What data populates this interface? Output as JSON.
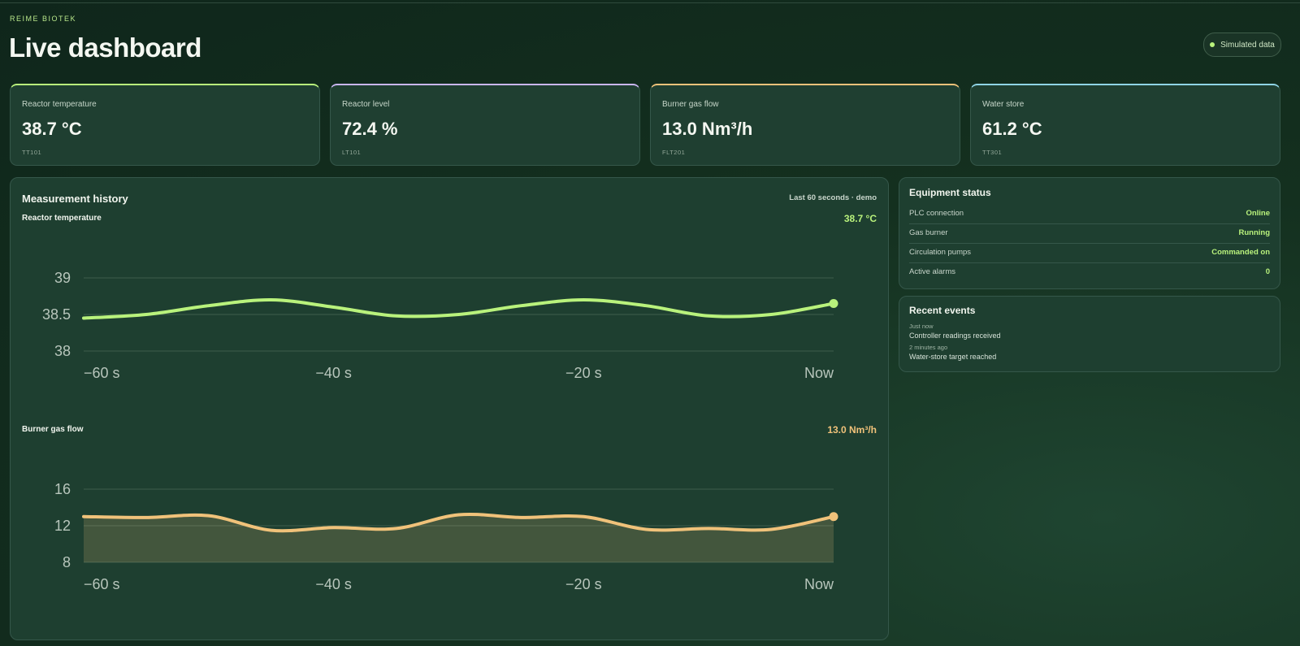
{
  "brand": "REIME BIOTEK",
  "page_title": "Live dashboard",
  "badge": {
    "label": "Simulated data",
    "dot_color": "#b9f27c"
  },
  "kpis": [
    {
      "label": "Reactor temperature",
      "value": "38.7 °C",
      "tag": "TT101",
      "accent": "#b9f27c"
    },
    {
      "label": "Reactor level",
      "value": "72.4 %",
      "tag": "LT101",
      "accent": "#c9b6f2"
    },
    {
      "label": "Burner gas flow",
      "value": "13.0 Nm³/h",
      "tag": "FLT201",
      "accent": "#f0c27a"
    },
    {
      "label": "Water store",
      "value": "61.2 °C",
      "tag": "TT301",
      "accent": "#8fd4e6"
    }
  ],
  "history": {
    "title": "Measurement history",
    "range_note": "Last 60 seconds · demo"
  },
  "chart_data": [
    {
      "type": "line",
      "title": "Reactor temperature",
      "current_value": "38.7 °C",
      "color": "#b9f27c",
      "x": [
        -60,
        -55,
        -50,
        -45,
        -40,
        -35,
        -30,
        -25,
        -20,
        -15,
        -10,
        -5,
        0
      ],
      "x_tick_labels": [
        "−60 s",
        "−40 s",
        "−20 s",
        "Now"
      ],
      "y_ticks": [
        "39",
        "38.5",
        "38"
      ],
      "ylim": [
        38,
        39
      ],
      "values": [
        38.45,
        38.5,
        38.62,
        38.7,
        38.6,
        38.48,
        38.5,
        38.62,
        38.7,
        38.62,
        38.48,
        38.5,
        38.65
      ],
      "grid": true,
      "fill": false
    },
    {
      "type": "area",
      "title": "Burner gas flow",
      "current_value": "13.0 Nm³/h",
      "color": "#f0c27a",
      "x": [
        -60,
        -55,
        -50,
        -45,
        -40,
        -35,
        -30,
        -25,
        -20,
        -15,
        -10,
        -5,
        0
      ],
      "x_tick_labels": [
        "−60 s",
        "−40 s",
        "−20 s",
        "Now"
      ],
      "y_ticks": [
        "16",
        "12",
        "8"
      ],
      "ylim": [
        8,
        16
      ],
      "values": [
        13.0,
        12.9,
        13.1,
        11.5,
        11.8,
        11.7,
        13.2,
        12.9,
        13.0,
        11.6,
        11.7,
        11.6,
        13.0
      ],
      "grid": true,
      "fill": true
    }
  ],
  "equipment": {
    "title": "Equipment status",
    "rows": [
      {
        "label": "PLC connection",
        "value": "Online"
      },
      {
        "label": "Gas burner",
        "value": "Running"
      },
      {
        "label": "Circulation pumps",
        "value": "Commanded on"
      },
      {
        "label": "Active alarms",
        "value": "0"
      }
    ]
  },
  "events": {
    "title": "Recent events",
    "items": [
      {
        "time": "Just now",
        "text": "Controller readings received"
      },
      {
        "time": "2 minutes ago",
        "text": "Water-store target reached"
      }
    ]
  }
}
